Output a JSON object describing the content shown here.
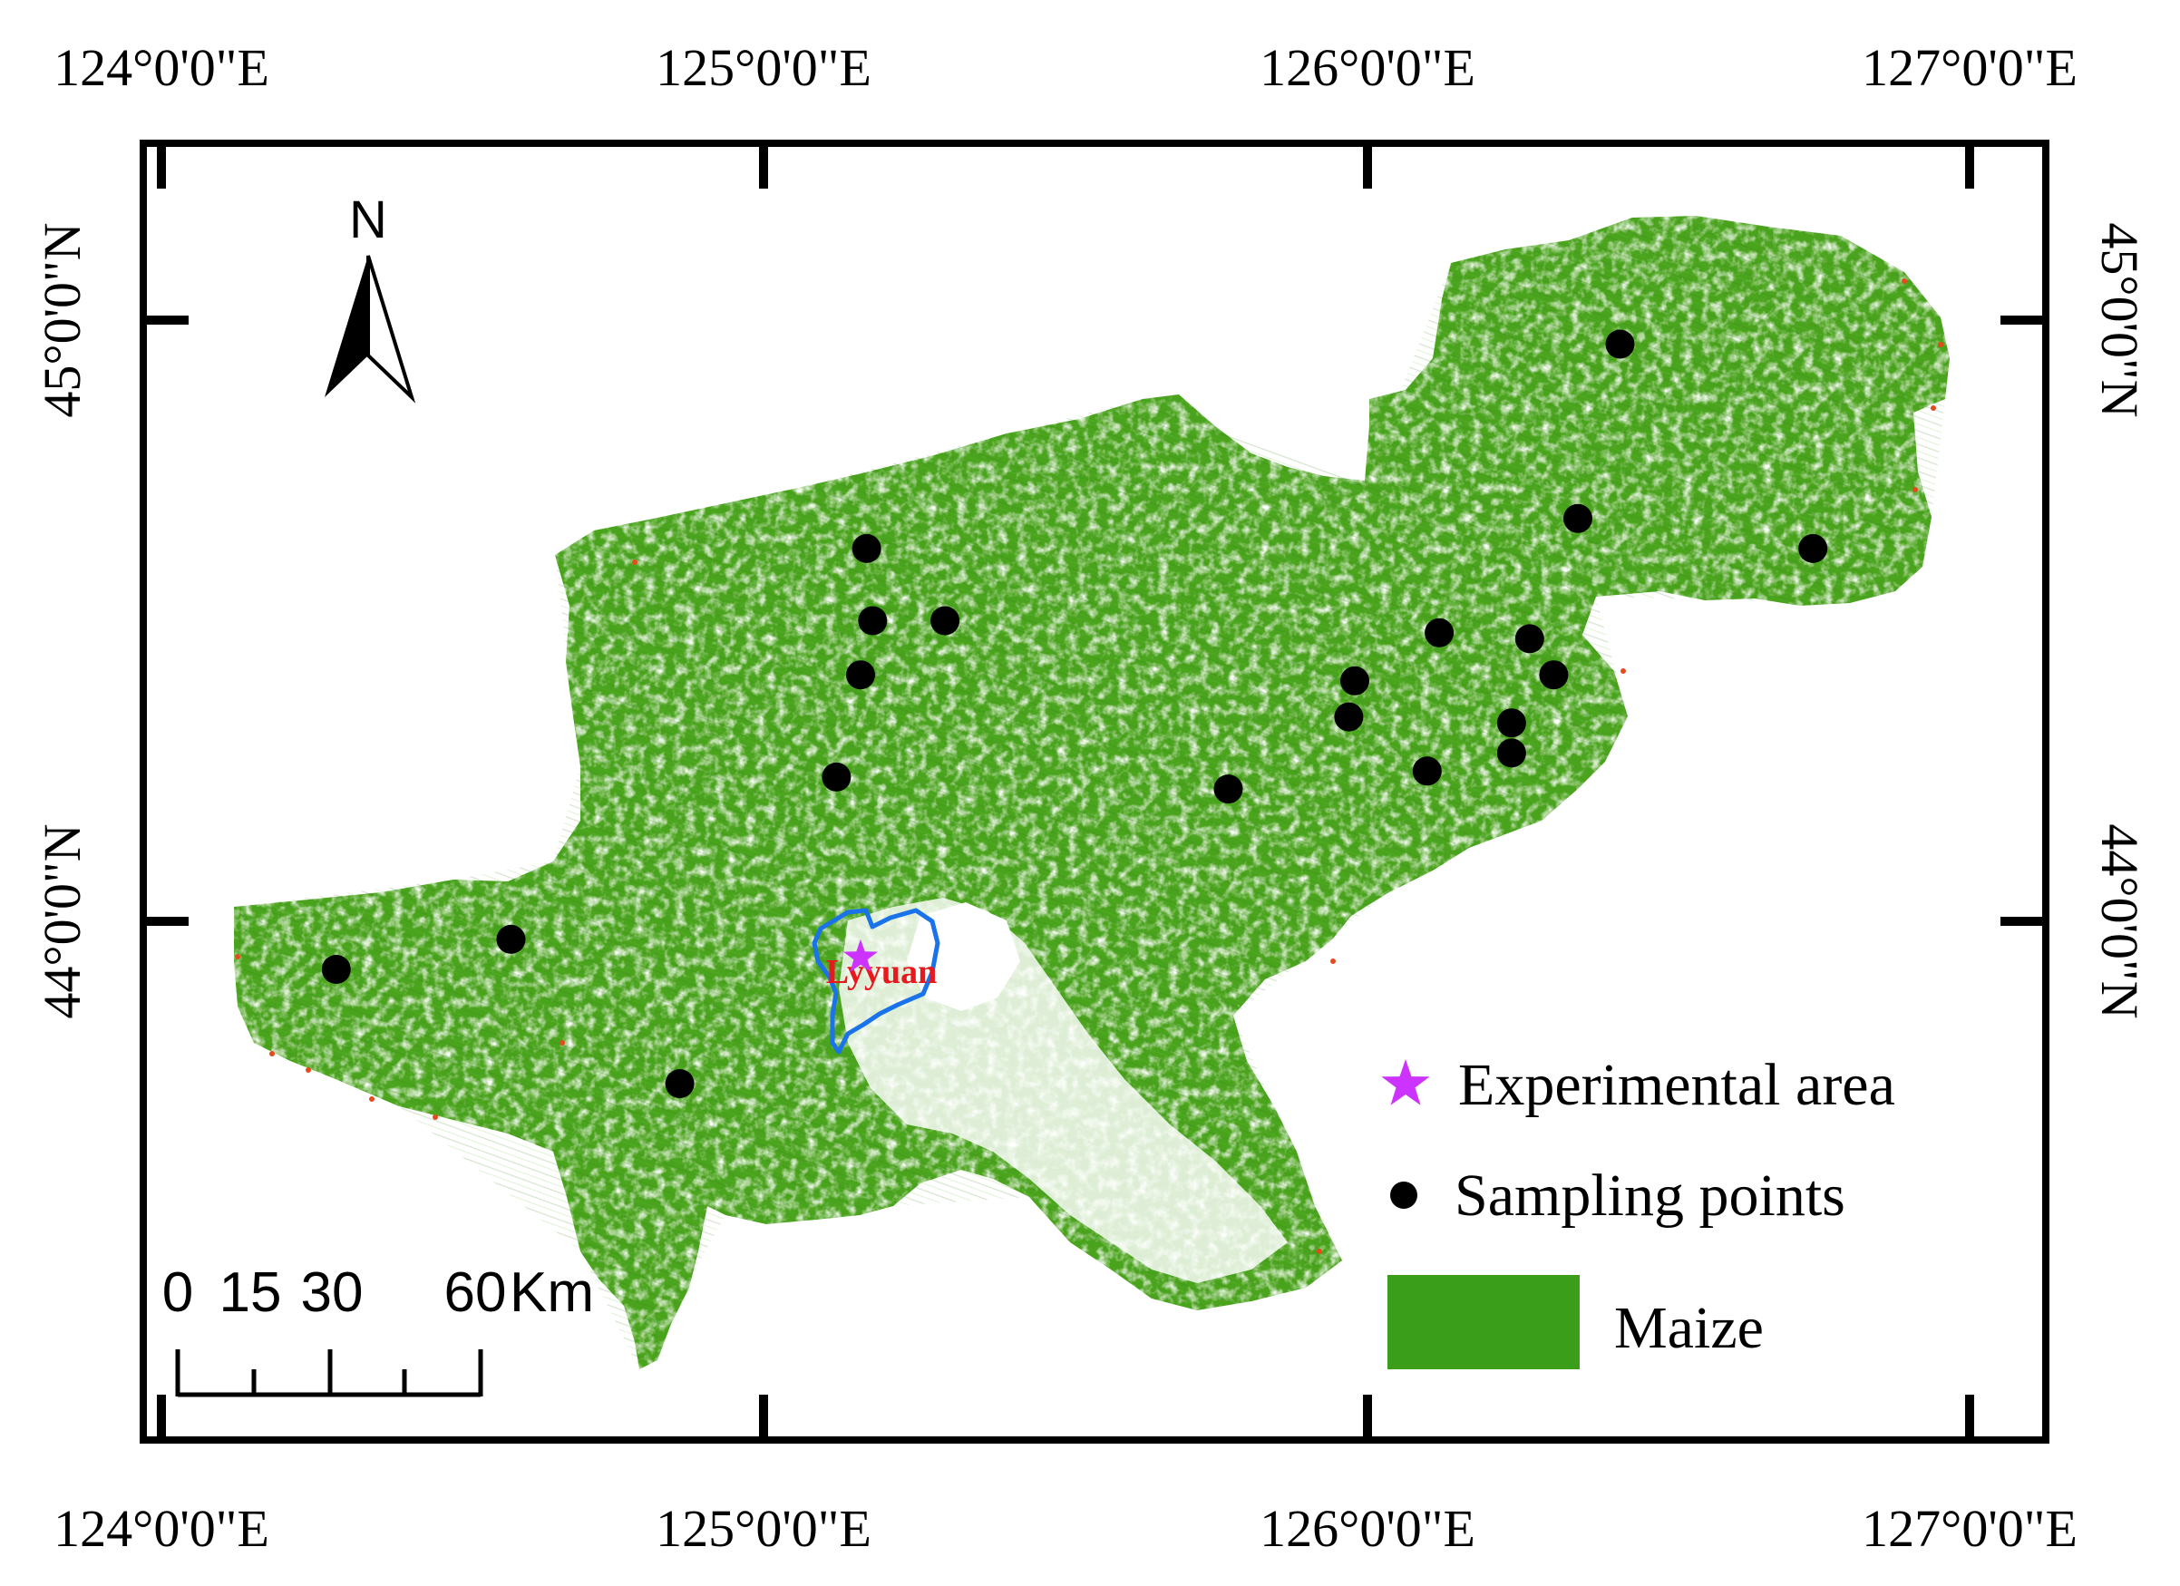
{
  "map": {
    "top_labels": [
      "124°0'0\"E",
      "125°0'0\"E",
      "126°0'0\"E",
      "127°0'0\"E"
    ],
    "bottom_labels": [
      "124°0'0\"E",
      "125°0'0\"E",
      "126°0'0\"E",
      "127°0'0\"E"
    ],
    "left_labels": [
      "45°0'0\"N",
      "44°0'0\"N"
    ],
    "right_labels": [
      "45°0'0\"N",
      "44°0'0\"N"
    ],
    "north_arrow_label": "N",
    "experimental_site_label": "Lyyuan",
    "scale_bar": {
      "tick_labels": [
        "0",
        "15",
        "30",
        "60"
      ],
      "unit": "Km"
    },
    "legend": {
      "items": [
        {
          "label": "Experimental area",
          "symbol": "purple-star",
          "color": "#cc33ff"
        },
        {
          "label": "Sampling points",
          "symbol": "black-dot",
          "color": "#000000"
        },
        {
          "label": "Maize",
          "symbol": "green-rect",
          "color": "#3a9e1a"
        }
      ]
    },
    "colors": {
      "maize": "#4aa31c",
      "maize_dark": "#2f7d12",
      "boundary": "#1a73e8",
      "site_label": "#e8181c",
      "star": "#cc33ff",
      "points": "#000000",
      "edge": "#e34a1c"
    },
    "sampling_points": [
      {
        "lon": 125.17,
        "lat": 44.62
      },
      {
        "lon": 125.18,
        "lat": 44.5
      },
      {
        "lon": 125.3,
        "lat": 44.5
      },
      {
        "lon": 125.16,
        "lat": 44.41
      },
      {
        "lon": 125.12,
        "lat": 44.24
      },
      {
        "lon": 125.77,
        "lat": 44.22
      },
      {
        "lon": 125.98,
        "lat": 44.4
      },
      {
        "lon": 125.97,
        "lat": 44.34
      },
      {
        "lon": 126.12,
        "lat": 44.48
      },
      {
        "lon": 126.1,
        "lat": 44.25
      },
      {
        "lon": 126.27,
        "lat": 44.47
      },
      {
        "lon": 126.31,
        "lat": 44.41
      },
      {
        "lon": 126.24,
        "lat": 44.33
      },
      {
        "lon": 126.24,
        "lat": 44.28
      },
      {
        "lon": 126.35,
        "lat": 44.67
      },
      {
        "lon": 126.42,
        "lat": 44.96
      },
      {
        "lon": 126.74,
        "lat": 44.62
      },
      {
        "lon": 124.29,
        "lat": 43.92
      },
      {
        "lon": 124.58,
        "lat": 43.97
      },
      {
        "lon": 124.86,
        "lat": 43.73
      }
    ],
    "experimental_site": {
      "lon": 125.16,
      "lat": 43.94
    }
  }
}
